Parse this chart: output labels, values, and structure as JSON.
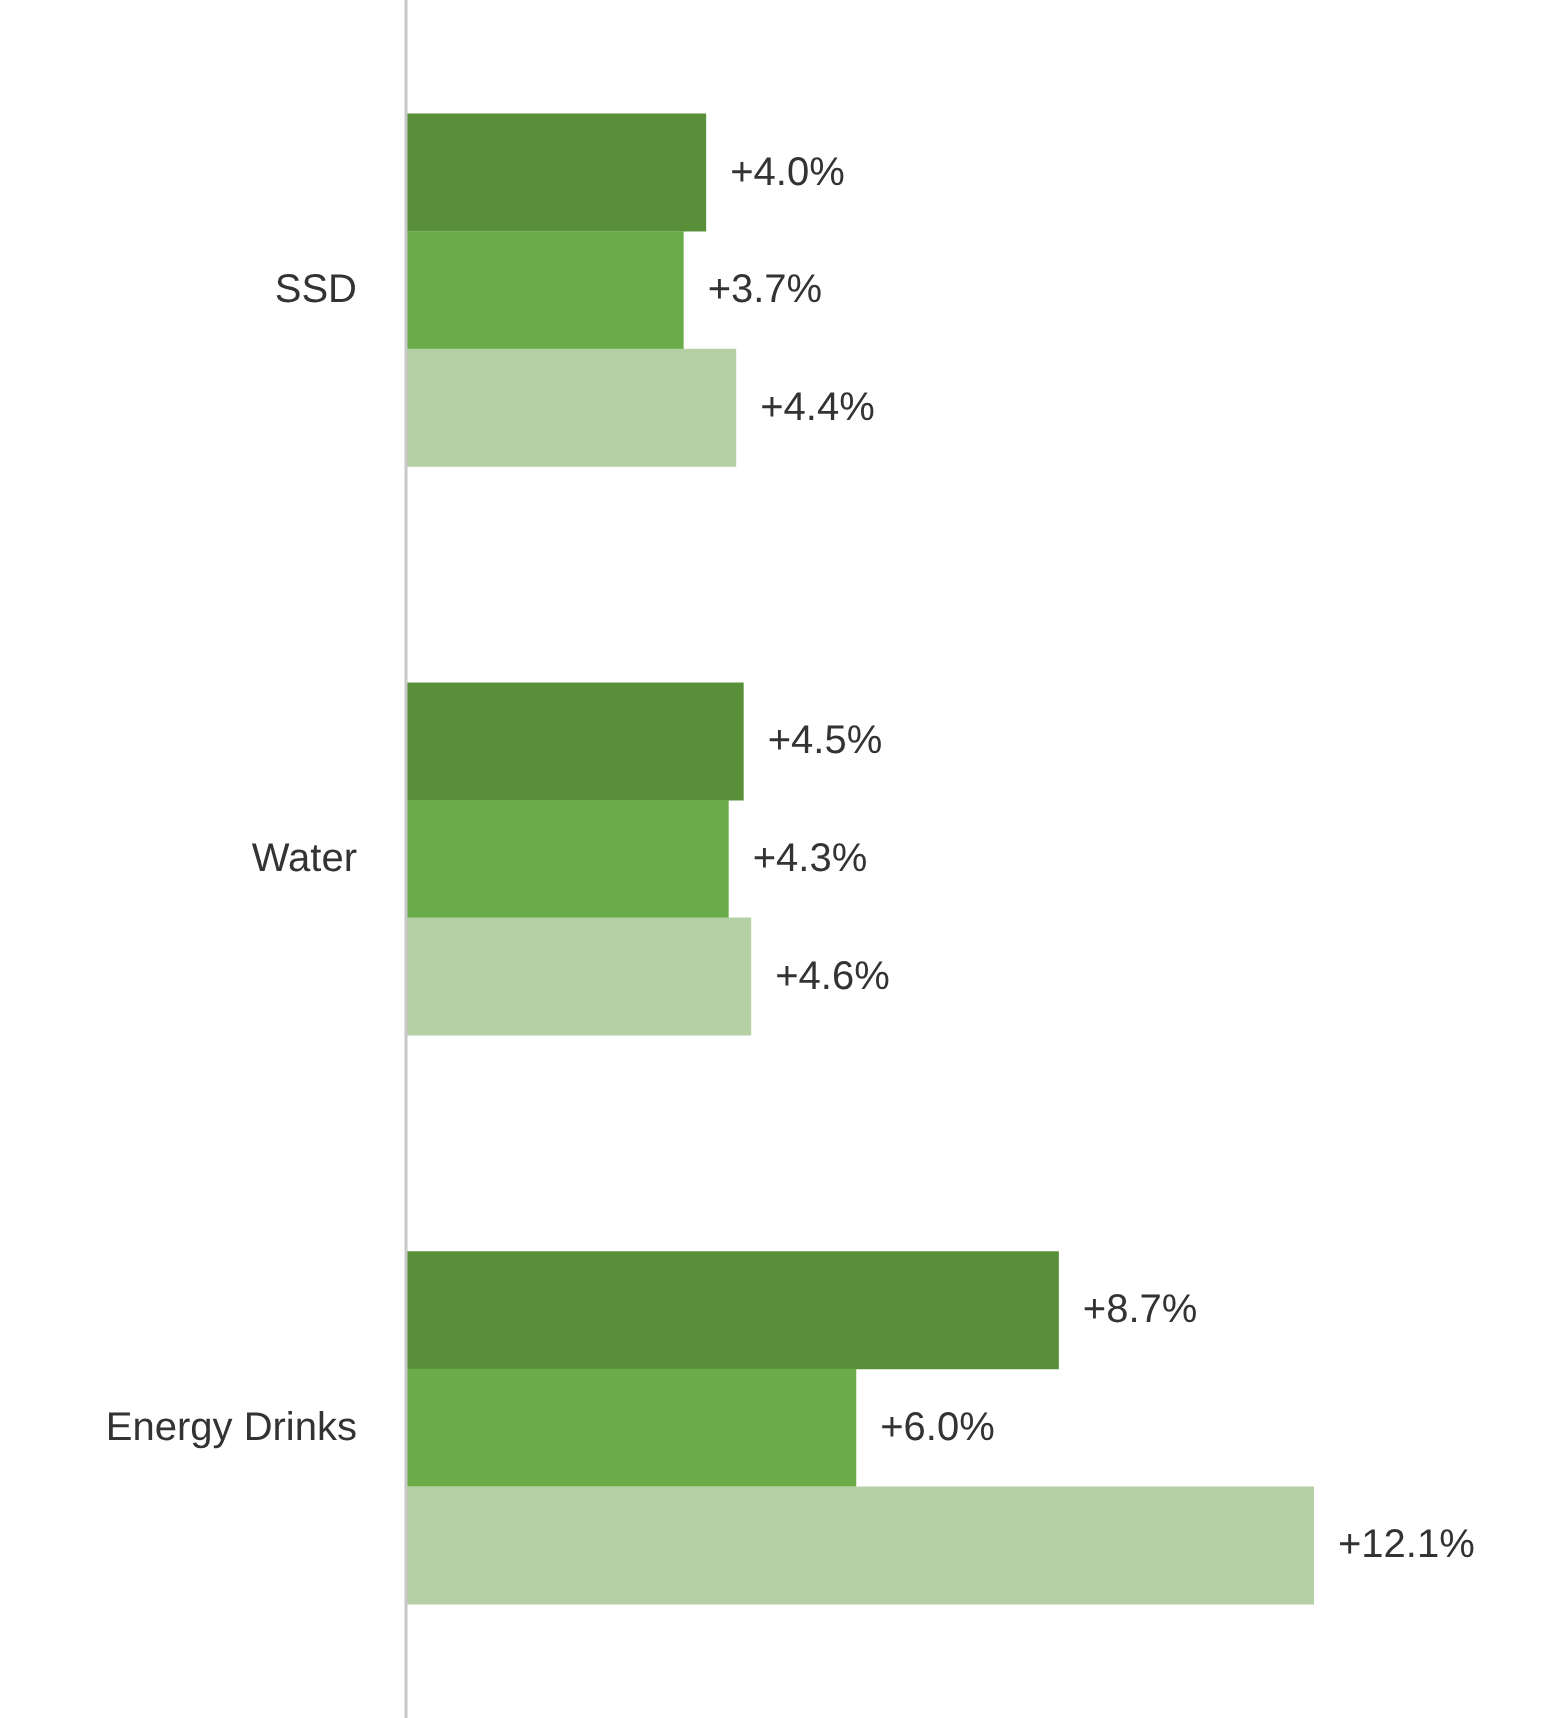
{
  "chart_data": {
    "type": "bar",
    "orientation": "horizontal",
    "tick_labels": "y",
    "categories": [
      "SSD",
      "Water",
      "Energy Drinks"
    ],
    "series": [
      {
        "color": "#5a8f3a",
        "values": [
          4.0,
          4.5,
          8.7
        ],
        "value_labels": [
          "+4.0%",
          "+4.5%",
          "+8.7%"
        ]
      },
      {
        "color": "#6aac48",
        "values": [
          3.7,
          4.3,
          6.0
        ],
        "value_labels": [
          "+3.7%",
          "+4.3%",
          "+6.0%"
        ]
      },
      {
        "color": "#b5d0a5",
        "values": [
          4.4,
          4.6,
          12.1
        ],
        "value_labels": [
          "+4.4%",
          "+4.6%",
          "+12.1%"
        ]
      }
    ]
  }
}
